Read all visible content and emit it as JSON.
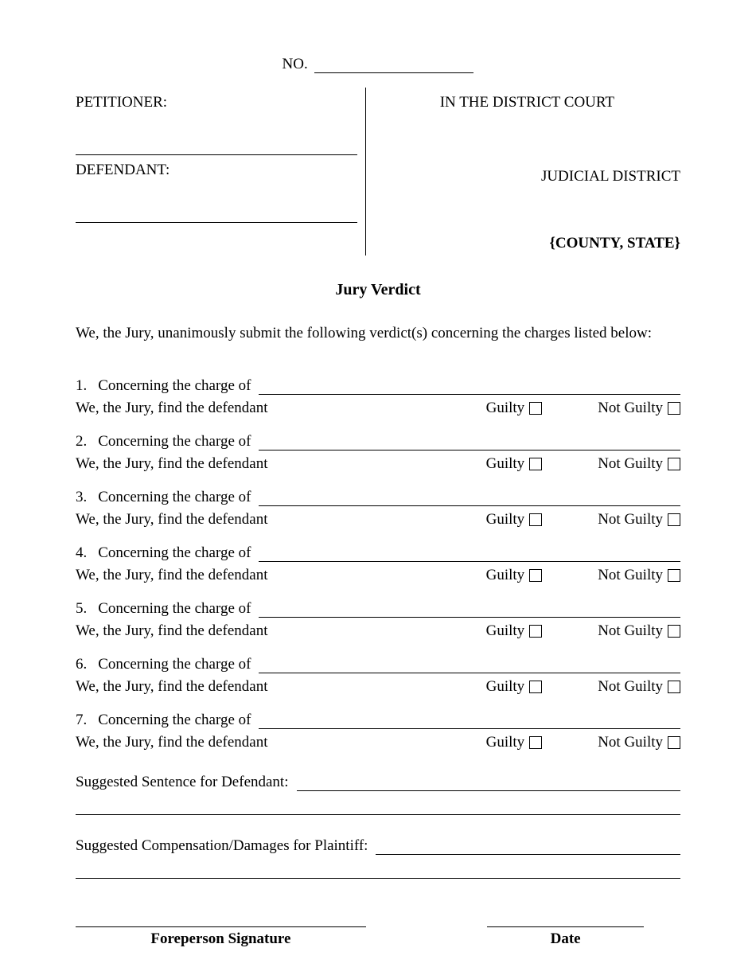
{
  "caseNumber": {
    "label": "NO."
  },
  "header": {
    "petitionerLabel": "PETITIONER:",
    "defendantLabel": "DEFENDANT:",
    "courtLine": "IN THE DISTRICT COURT",
    "districtLine": "JUDICIAL DISTRICT",
    "countyState": "{COUNTY, STATE}"
  },
  "title": "Jury Verdict",
  "intro": "We, the Jury, unanimously submit the following verdict(s) concerning the charges listed below:",
  "chargeLeadText": "Concerning the charge of",
  "findText": "We, the Jury, find the defendant",
  "guiltyLabel": "Guilty",
  "notGuiltyLabel": "Not Guilty",
  "charges": [
    {
      "num": "1."
    },
    {
      "num": "2."
    },
    {
      "num": "3."
    },
    {
      "num": "4."
    },
    {
      "num": "5."
    },
    {
      "num": "6."
    },
    {
      "num": "7."
    }
  ],
  "suggestedSentenceLabel": "Suggested Sentence for Defendant:",
  "suggestedCompLabel": "Suggested Compensation/Damages for Plaintiff:",
  "signature": {
    "foreperson": "Foreperson Signature",
    "date": "Date"
  }
}
